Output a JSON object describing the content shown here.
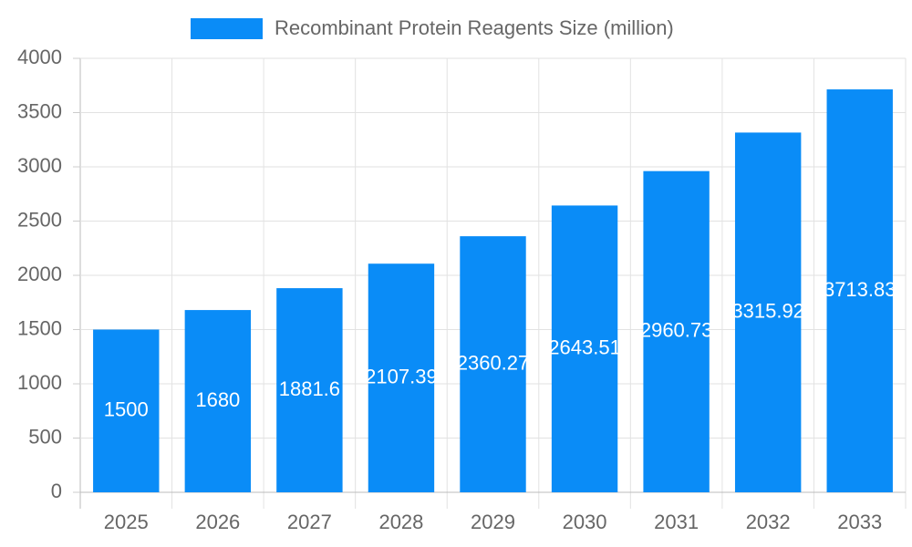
{
  "chart_data": {
    "type": "bar",
    "categories": [
      "2025",
      "2026",
      "2027",
      "2028",
      "2029",
      "2030",
      "2031",
      "2032",
      "2033"
    ],
    "series": [
      {
        "name": "Recombinant Protein Reagents Size (million)",
        "color": "#0a8cf7",
        "values": [
          1500,
          1680,
          1881.6,
          2107.39,
          2360.27,
          2643.51,
          2960.73,
          3315.92,
          3713.83
        ]
      }
    ],
    "ylim": [
      0,
      4000
    ],
    "yticks": [
      0,
      500,
      1000,
      1500,
      2000,
      2500,
      3000,
      3500,
      4000
    ],
    "grid": true,
    "legend": "top",
    "data_labels": true
  }
}
